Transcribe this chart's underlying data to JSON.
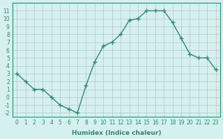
{
  "x": [
    0,
    1,
    2,
    3,
    4,
    5,
    6,
    7,
    8,
    9,
    10,
    11,
    12,
    13,
    14,
    15,
    16,
    17,
    18,
    19,
    20,
    21,
    22,
    23
  ],
  "y": [
    3,
    2,
    1,
    1,
    0,
    -1,
    -1.5,
    -2,
    1.5,
    4.5,
    6.5,
    7,
    8,
    9.8,
    10,
    11,
    11,
    11,
    9.5,
    7.5,
    5.5,
    5,
    5,
    3.5
  ],
  "xlabel": "Humidex (Indice chaleur)",
  "xlim": [
    -0.5,
    23.5
  ],
  "ylim": [
    -2.5,
    12
  ],
  "yticks": [
    -2,
    -1,
    0,
    1,
    2,
    3,
    4,
    5,
    6,
    7,
    8,
    9,
    10,
    11
  ],
  "xticks": [
    0,
    1,
    2,
    3,
    4,
    5,
    6,
    7,
    8,
    9,
    10,
    11,
    12,
    13,
    14,
    15,
    16,
    17,
    18,
    19,
    20,
    21,
    22,
    23
  ],
  "line_color": "#2e8b6e",
  "bg_color": "#d6efef",
  "grid_color": "#b0c8c8"
}
